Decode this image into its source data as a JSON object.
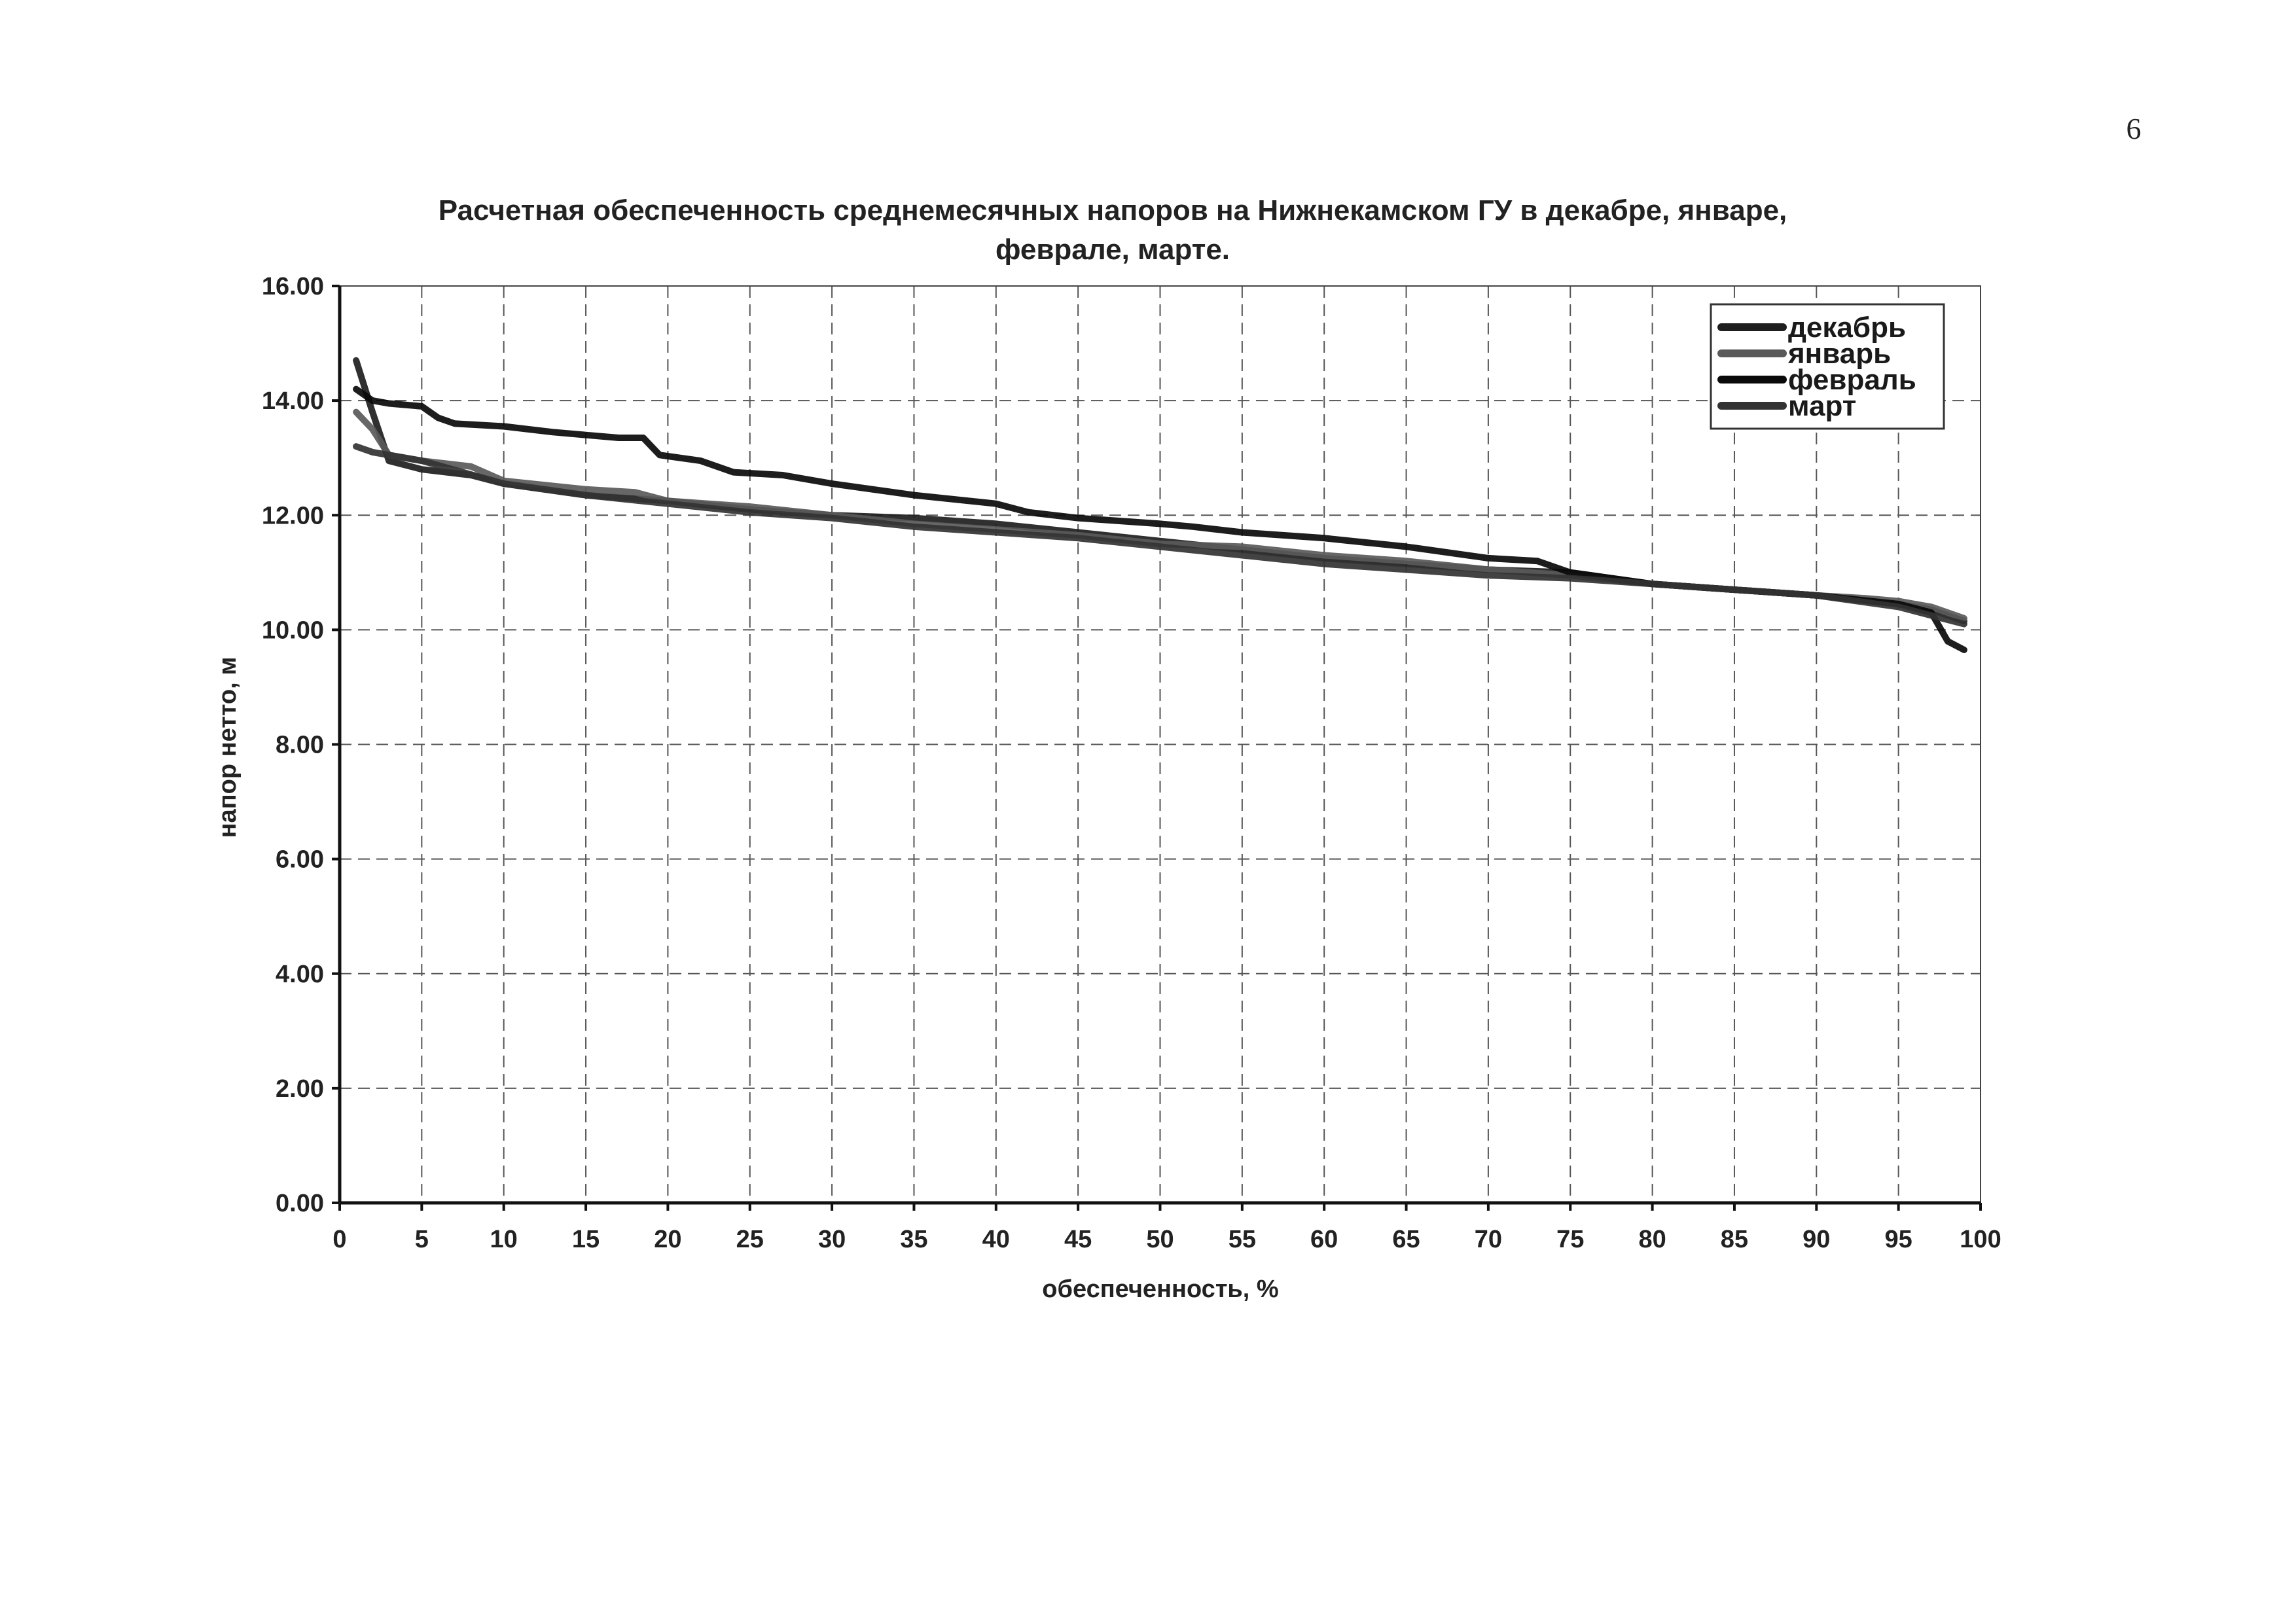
{
  "page": {
    "number": "6"
  },
  "chart_data": {
    "type": "line",
    "title_lines": [
      "Расчетная обеспеченность среднемесячных напоров на Нижнекамском ГУ в декабре, январе,",
      "феврале, марте."
    ],
    "xlabel": "обеспеченность, %",
    "ylabel": "напор нетто, м",
    "xlim": [
      0,
      100
    ],
    "ylim": [
      0,
      16
    ],
    "x_ticks": [
      "0",
      "5",
      "10",
      "15",
      "20",
      "25",
      "30",
      "35",
      "40",
      "45",
      "50",
      "55",
      "60",
      "65",
      "70",
      "75",
      "80",
      "85",
      "90",
      "95",
      "100"
    ],
    "y_ticks": [
      "0.00",
      "2.00",
      "4.00",
      "6.00",
      "8.00",
      "10.00",
      "12.00",
      "14.00",
      "16.00"
    ],
    "grid": true,
    "legend_position": "top-right",
    "series": [
      {
        "name": "декабрь",
        "color": "#1e1e1e",
        "points": [
          [
            1,
            14.7
          ],
          [
            2,
            13.8
          ],
          [
            3,
            12.95
          ],
          [
            5,
            12.8
          ],
          [
            8,
            12.7
          ],
          [
            10,
            12.55
          ],
          [
            15,
            12.35
          ],
          [
            20,
            12.25
          ],
          [
            25,
            12.1
          ],
          [
            30,
            12.0
          ],
          [
            35,
            11.95
          ],
          [
            40,
            11.85
          ],
          [
            45,
            11.7
          ],
          [
            50,
            11.55
          ],
          [
            55,
            11.4
          ],
          [
            60,
            11.25
          ],
          [
            65,
            11.15
          ],
          [
            70,
            11.05
          ],
          [
            75,
            11.0
          ],
          [
            80,
            10.8
          ],
          [
            85,
            10.7
          ],
          [
            90,
            10.6
          ],
          [
            95,
            10.45
          ],
          [
            97,
            10.35
          ],
          [
            99,
            10.15
          ]
        ]
      },
      {
        "name": "январь",
        "color": "#5a5a5a",
        "points": [
          [
            1,
            13.8
          ],
          [
            2,
            13.5
          ],
          [
            3,
            13.05
          ],
          [
            5,
            12.95
          ],
          [
            8,
            12.85
          ],
          [
            10,
            12.6
          ],
          [
            15,
            12.45
          ],
          [
            18,
            12.4
          ],
          [
            20,
            12.25
          ],
          [
            25,
            12.15
          ],
          [
            30,
            12.0
          ],
          [
            35,
            11.85
          ],
          [
            40,
            11.75
          ],
          [
            45,
            11.65
          ],
          [
            50,
            11.5
          ],
          [
            55,
            11.45
          ],
          [
            60,
            11.3
          ],
          [
            65,
            11.2
          ],
          [
            70,
            11.05
          ],
          [
            75,
            10.95
          ],
          [
            80,
            10.8
          ],
          [
            85,
            10.7
          ],
          [
            90,
            10.6
          ],
          [
            93,
            10.55
          ],
          [
            95,
            10.5
          ],
          [
            97,
            10.4
          ],
          [
            99,
            10.2
          ]
        ]
      },
      {
        "name": "февраль",
        "color": "#0a0a0a",
        "points": [
          [
            1,
            14.2
          ],
          [
            2,
            14.0
          ],
          [
            3,
            13.95
          ],
          [
            5,
            13.9
          ],
          [
            6,
            13.7
          ],
          [
            7,
            13.6
          ],
          [
            10,
            13.55
          ],
          [
            13,
            13.45
          ],
          [
            15,
            13.4
          ],
          [
            17,
            13.35
          ],
          [
            18.5,
            13.35
          ],
          [
            19.5,
            13.05
          ],
          [
            22,
            12.95
          ],
          [
            24,
            12.75
          ],
          [
            27,
            12.7
          ],
          [
            30,
            12.55
          ],
          [
            35,
            12.35
          ],
          [
            40,
            12.2
          ],
          [
            42,
            12.05
          ],
          [
            45,
            11.95
          ],
          [
            50,
            11.85
          ],
          [
            52,
            11.8
          ],
          [
            55,
            11.7
          ],
          [
            60,
            11.6
          ],
          [
            65,
            11.45
          ],
          [
            70,
            11.25
          ],
          [
            73,
            11.2
          ],
          [
            75,
            11.0
          ],
          [
            80,
            10.8
          ],
          [
            85,
            10.7
          ],
          [
            90,
            10.6
          ],
          [
            95,
            10.45
          ],
          [
            97,
            10.3
          ],
          [
            98,
            9.8
          ],
          [
            99,
            9.65
          ]
        ]
      },
      {
        "name": "март",
        "color": "#333333",
        "points": [
          [
            1,
            13.2
          ],
          [
            2,
            13.1
          ],
          [
            3,
            13.05
          ],
          [
            5,
            12.95
          ],
          [
            10,
            12.55
          ],
          [
            15,
            12.35
          ],
          [
            20,
            12.2
          ],
          [
            25,
            12.05
          ],
          [
            30,
            11.95
          ],
          [
            35,
            11.8
          ],
          [
            40,
            11.7
          ],
          [
            45,
            11.6
          ],
          [
            50,
            11.45
          ],
          [
            55,
            11.3
          ],
          [
            60,
            11.15
          ],
          [
            65,
            11.05
          ],
          [
            70,
            10.95
          ],
          [
            75,
            10.9
          ],
          [
            80,
            10.8
          ],
          [
            85,
            10.7
          ],
          [
            90,
            10.6
          ],
          [
            95,
            10.4
          ],
          [
            97,
            10.25
          ],
          [
            99,
            10.1
          ]
        ]
      }
    ]
  }
}
